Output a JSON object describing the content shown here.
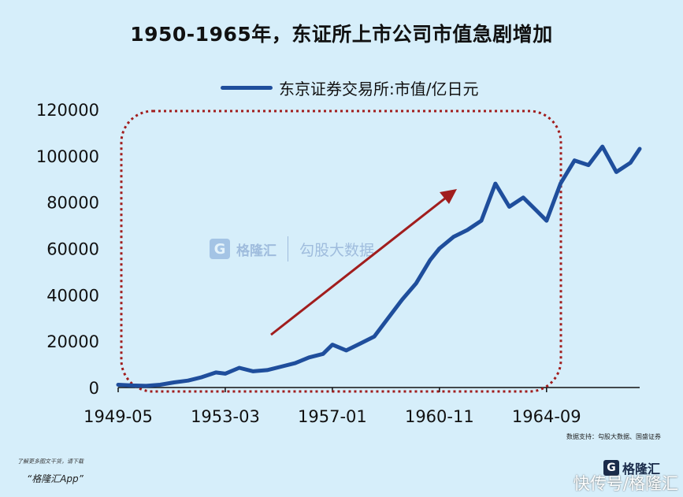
{
  "title": "1950-1965年，东证所上市公司市值急剧增加",
  "colors": {
    "background": "#d6eefa",
    "series": "#1f4e9c",
    "arrow": "#a11d1d",
    "highlight_box": "#a11d1d"
  },
  "chart_data": {
    "type": "line",
    "series": [
      {
        "name": "东京证券交易所:市值/亿日元",
        "x": [
          "1949-05",
          "1949-11",
          "1950-05",
          "1950-11",
          "1951-05",
          "1951-11",
          "1952-05",
          "1952-11",
          "1953-03",
          "1953-09",
          "1954-03",
          "1954-09",
          "1955-03",
          "1955-09",
          "1956-03",
          "1956-09",
          "1957-01",
          "1957-07",
          "1958-01",
          "1958-07",
          "1959-01",
          "1959-07",
          "1960-01",
          "1960-07",
          "1960-11",
          "1961-05",
          "1961-11",
          "1962-05",
          "1962-11",
          "1963-05",
          "1963-11",
          "1964-05",
          "1964-09",
          "1965-03",
          "1965-09",
          "1966-03",
          "1966-09",
          "1967-03",
          "1967-09",
          "1968-01"
        ],
        "values": [
          1200,
          900,
          700,
          1200,
          2200,
          3000,
          4500,
          6500,
          6000,
          8500,
          7000,
          7500,
          9000,
          10500,
          13000,
          14500,
          18500,
          16000,
          19000,
          22000,
          30000,
          38000,
          45000,
          55000,
          60000,
          65000,
          68000,
          72000,
          88000,
          78000,
          82000,
          76000,
          72000,
          88000,
          98000,
          96000,
          104000,
          93000,
          97000,
          103000
        ]
      }
    ],
    "x_ticks": [
      "1949-05",
      "1953-03",
      "1957-01",
      "1960-11",
      "1964-09"
    ],
    "y_ticks": [
      0,
      20000,
      40000,
      60000,
      80000,
      100000,
      120000
    ],
    "ylim": [
      0,
      120000
    ],
    "legend_position": "top",
    "annotations": [
      "red dotted rounded box 1950–1965",
      "red upward trend arrow"
    ]
  },
  "source": "数据支持：勾股大数据、国盛证券",
  "promo": {
    "line1": "了解更多图文干货，请下载",
    "line2": "“格隆汇App”"
  },
  "logo": {
    "mark": "G",
    "text": "格隆汇"
  },
  "watermark": {
    "brand": "格隆汇",
    "brand2": "勾股大数据"
  },
  "corner_watermark": "快传号/格隆汇"
}
